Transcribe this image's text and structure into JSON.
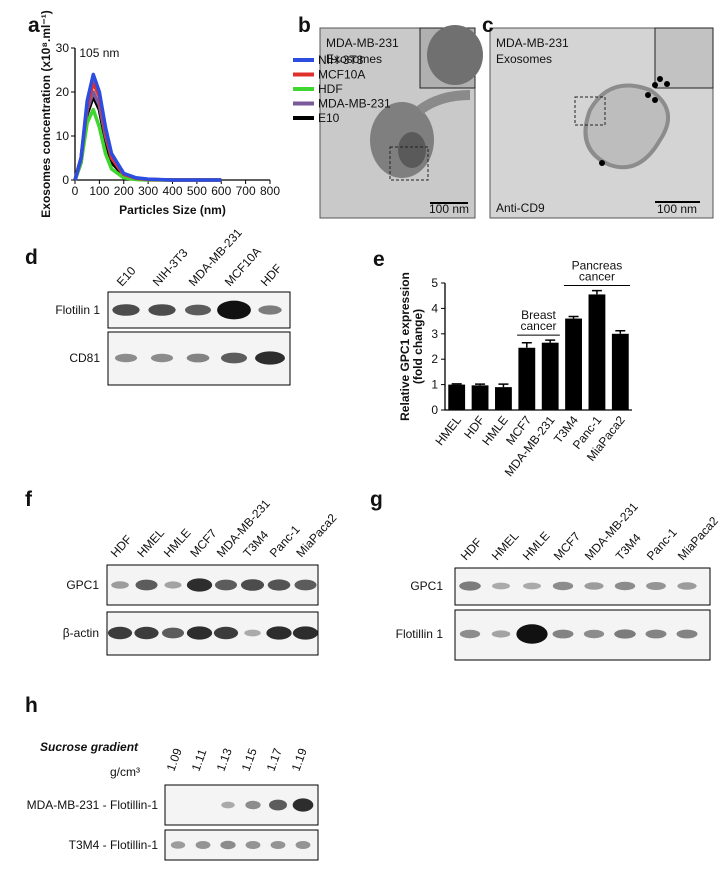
{
  "panel_labels": [
    "a",
    "b",
    "c",
    "d",
    "e",
    "f",
    "g",
    "h"
  ],
  "chart_data": [
    {
      "type": "line",
      "ylabel": "Exosomes concentration (x10⁸.ml⁻¹)",
      "xlabel": "Particles Size (nm)",
      "annotation": "105 nm",
      "x": [
        0,
        25,
        50,
        75,
        100,
        125,
        150,
        200,
        250,
        300,
        400,
        500,
        600
      ],
      "series": [
        {
          "name": "NIH-3T3",
          "color": "#2b4de0",
          "values": [
            0,
            5,
            18,
            24,
            20,
            12,
            6,
            1.5,
            0.5,
            0.2,
            0,
            0,
            0
          ]
        },
        {
          "name": "MCF10A",
          "color": "#e0302b",
          "values": [
            0,
            5,
            17,
            22,
            19,
            11,
            5,
            1.3,
            0.4,
            0.1,
            0,
            0,
            0
          ]
        },
        {
          "name": "HDF",
          "color": "#3fd62f",
          "values": [
            0,
            4,
            13,
            16,
            12,
            6,
            2.5,
            0.5,
            0.1,
            0,
            0,
            0,
            0
          ]
        },
        {
          "name": "MDA-MB-231",
          "color": "#7a5a9a",
          "values": [
            0,
            5,
            16,
            20,
            17,
            10,
            5,
            1.2,
            0.3,
            0.1,
            0,
            0,
            0
          ]
        },
        {
          "name": "E10",
          "color": "#000000",
          "values": [
            0,
            4,
            15,
            19,
            16,
            9,
            4,
            1,
            0.3,
            0.1,
            0,
            0,
            0
          ]
        }
      ],
      "xlim": [
        0,
        800
      ],
      "xticks": [
        0,
        100,
        200,
        300,
        400,
        500,
        600,
        700,
        800
      ],
      "ylim": [
        0,
        30
      ],
      "yticks": [
        0,
        10,
        20,
        30
      ]
    },
    {
      "type": "bar",
      "ylabel": [
        "Relative GPC1 expression",
        "(fold change)"
      ],
      "categories": [
        "HMEL",
        "HDF",
        "HMLE",
        "MCF7",
        "MDA-MB-231",
        "T3M4",
        "Panc-1",
        "MiaPaca2"
      ],
      "values": [
        1,
        0.97,
        0.9,
        2.45,
        2.65,
        3.6,
        4.55,
        3.0
      ],
      "errors": [
        0.03,
        0.05,
        0.12,
        0.2,
        0.1,
        0.08,
        0.15,
        0.12
      ],
      "color": "#000000",
      "group_labels": [
        [
          "Breast",
          "cancer"
        ],
        [
          "Pancreas",
          "cancer"
        ]
      ],
      "ylim": [
        0,
        5
      ],
      "yticks": [
        0,
        1,
        2,
        3,
        4,
        5
      ]
    }
  ],
  "micrographs": [
    {
      "caption": [
        "MDA-MB-231",
        "Exosomes"
      ],
      "scale_bar": "100 nm"
    },
    {
      "caption": [
        "MDA-MB-231",
        "Exosomes"
      ],
      "stain": "Anti-CD9",
      "scale_bar": "100 nm"
    }
  ],
  "blots": [
    {
      "lanes": [
        "E10",
        "NIH-3T3",
        "MDA-MB-231",
        "MCF10A",
        "HDF"
      ],
      "rows": [
        "Flotilin 1",
        "CD81"
      ]
    },
    {
      "lanes": [
        "HDF",
        "HMEL",
        "HMLE",
        "MCF7",
        "MDA-MB-231",
        "T3M4",
        "Panc-1",
        "MiaPaca2"
      ],
      "rows": [
        "GPC1",
        "β-actin"
      ]
    },
    {
      "lanes": [
        "HDF",
        "HMEL",
        "HMLE",
        "MCF7",
        "MDA-MB-231",
        "T3M4",
        "Panc-1",
        "MiaPaca2"
      ],
      "rows": [
        "GPC1",
        "Flotillin 1"
      ]
    },
    {
      "title": "Sucrose gradient",
      "unit": "g/cm³",
      "lanes": [
        1.09,
        1.11,
        1.13,
        1.15,
        1.17,
        1.19
      ],
      "rows": [
        "MDA-MB-231 - Flotillin-1",
        "T3M4 - Flotillin-1"
      ]
    }
  ]
}
